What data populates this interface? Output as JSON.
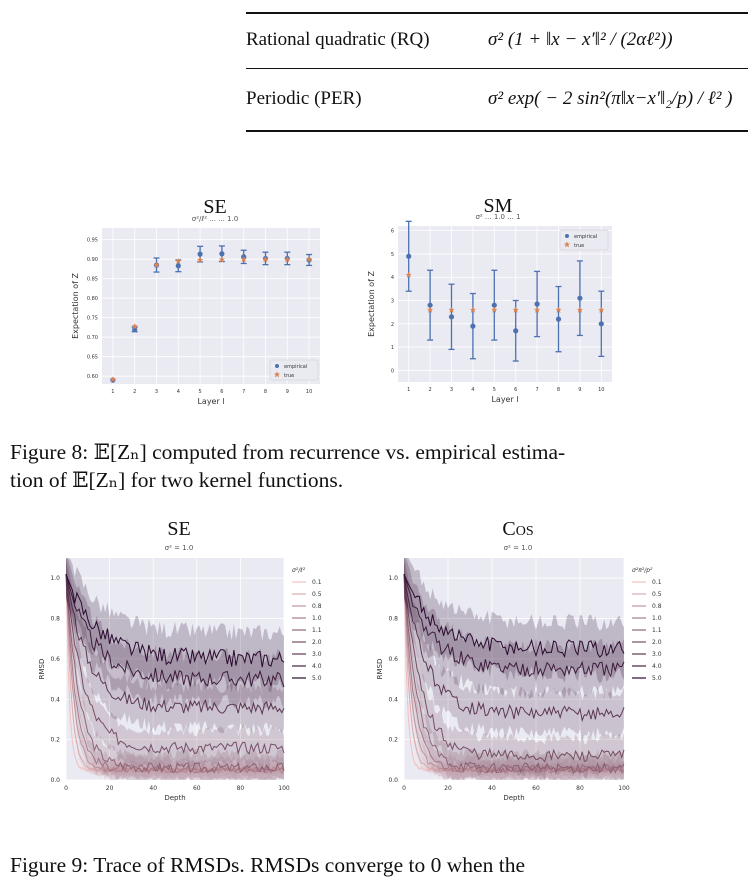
{
  "table": {
    "rows": [
      {
        "name": "Rational quadratic (RQ)",
        "formula": "σ² (1 + ‖x − x′‖² / (2αℓ²))"
      },
      {
        "name": "Periodic (PER)",
        "formula": "σ² exp( − 2 sin²(π‖x−x′‖₂/p) / ℓ² )"
      }
    ]
  },
  "figure8": {
    "caption": "Figure 8: 𝔼[Zₙ] computed from recurrence vs. empirical estimation of 𝔼[Zₙ] for two kernel functions.",
    "caption_line1": "Figure 8: 𝔼[Zₙ] computed from recurrence vs. empirical estima-",
    "caption_line2": "tion of 𝔼[Zₙ] for two kernel functions."
  },
  "figure9": {
    "caption_line1": "Figure 9: Trace of RMSDs. RMSDs converge to 0 when the"
  },
  "chart_data": [
    {
      "type": "scatter",
      "title": "SE",
      "subtitle": "σ²/ℓ² ... ... 1.0",
      "xlabel": "Layer l",
      "ylabel": "Expectation of Z",
      "x": [
        1,
        2,
        3,
        4,
        5,
        6,
        7,
        8,
        9,
        10
      ],
      "yticks": [
        "0.60",
        "0.65",
        "0.70",
        "0.75",
        "0.80",
        "0.85",
        "0.90",
        "0.95"
      ],
      "ylim": [
        0.58,
        0.98
      ],
      "series": [
        {
          "name": "empirical",
          "color": "#4c72b0",
          "values": [
            0.59,
            0.72,
            0.885,
            0.883,
            0.913,
            0.914,
            0.906,
            0.902,
            0.902,
            0.898
          ],
          "err": [
            0.0,
            0.006,
            0.018,
            0.015,
            0.02,
            0.02,
            0.017,
            0.016,
            0.016,
            0.014
          ]
        },
        {
          "name": "true",
          "color": "#dd8452",
          "values": [
            0.592,
            0.728,
            0.885,
            0.895,
            0.898,
            0.899,
            0.9,
            0.9,
            0.9,
            0.9
          ]
        }
      ],
      "legend": "bottom-right"
    },
    {
      "type": "scatter",
      "title": "SM",
      "subtitle": "σ² ... 1.0 ... 1",
      "xlabel": "Layer l",
      "ylabel": "Expectation of Z",
      "x": [
        1,
        2,
        3,
        4,
        5,
        6,
        7,
        8,
        9,
        10
      ],
      "yticks": [
        "0",
        "1",
        "2",
        "3",
        "4",
        "5",
        "6"
      ],
      "ylim": [
        -0.5,
        6.2
      ],
      "series": [
        {
          "name": "empirical",
          "color": "#4c72b0",
          "values": [
            4.9,
            2.8,
            2.3,
            1.9,
            2.8,
            1.7,
            2.85,
            2.2,
            3.1,
            2.0
          ],
          "err": [
            1.5,
            1.5,
            1.4,
            1.4,
            1.5,
            1.3,
            1.4,
            1.4,
            1.6,
            1.4
          ]
        },
        {
          "name": "true",
          "color": "#dd8452",
          "values": [
            4.1,
            2.6,
            2.6,
            2.6,
            2.6,
            2.6,
            2.6,
            2.6,
            2.6,
            2.6
          ]
        }
      ],
      "legend": "top-right"
    },
    {
      "type": "line",
      "title": "SE",
      "subtitle": "σ² = 1.0",
      "xlabel": "Depth",
      "ylabel": "RMSD",
      "xlim": [
        0,
        100
      ],
      "xticks": [
        "0",
        "20",
        "40",
        "60",
        "80",
        "100"
      ],
      "ylim": [
        0.0,
        1.1
      ],
      "yticks": [
        "0.0",
        "0.2",
        "0.4",
        "0.6",
        "0.8",
        "1.0"
      ],
      "legend_title": "σ²/ℓ²",
      "series_names": [
        "0.1",
        "0.5",
        "0.8",
        "1.0",
        "1.1",
        "2.0",
        "3.0",
        "4.0",
        "5.0"
      ],
      "plateaus": [
        0.05,
        0.05,
        0.05,
        0.055,
        0.06,
        0.16,
        0.36,
        0.5,
        0.6
      ],
      "decay": [
        1.5,
        2.5,
        3.5,
        4.5,
        6,
        8,
        10,
        12,
        14
      ]
    },
    {
      "type": "line",
      "title": "Cos",
      "subtitle": "σ² = 1.0",
      "xlabel": "Depth",
      "ylabel": "RMSD",
      "xlim": [
        0,
        100
      ],
      "xticks": [
        "0",
        "20",
        "40",
        "60",
        "80",
        "100"
      ],
      "ylim": [
        0.0,
        1.1
      ],
      "yticks": [
        "0.0",
        "0.2",
        "0.4",
        "0.6",
        "0.8",
        "1.0"
      ],
      "legend_title": "σ²π²/p²",
      "series_names": [
        "0.1",
        "0.5",
        "0.8",
        "1.0",
        "1.1",
        "2.0",
        "3.0",
        "4.0",
        "5.0"
      ],
      "plateaus": [
        0.05,
        0.05,
        0.05,
        0.055,
        0.06,
        0.12,
        0.33,
        0.55,
        0.65
      ],
      "decay": [
        1.5,
        2.5,
        3.5,
        4.5,
        6,
        8,
        10,
        12,
        14
      ]
    }
  ],
  "colors": {
    "axes_bg": "#eaeaf2",
    "grid": "#ffffff",
    "empirical": "#4c72b0",
    "true": "#dd8452",
    "rocket_light": "#f3c0bf",
    "rocket_dark": "#2b0a2e"
  }
}
